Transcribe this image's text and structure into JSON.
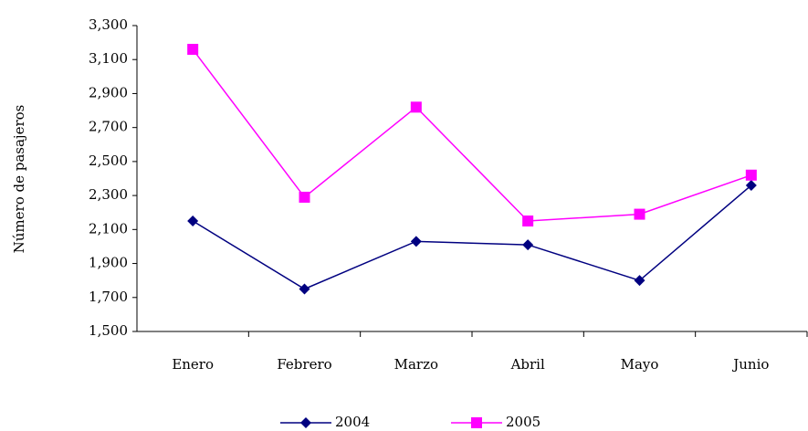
{
  "chart_data": {
    "type": "line",
    "ylabel": "Número de pasajeros",
    "categories": [
      "Enero",
      "Febrero",
      "Marzo",
      "Abril",
      "Mayo",
      "Junio"
    ],
    "series": [
      {
        "name": "2004",
        "color": "#000080",
        "marker": "diamond",
        "values": [
          2150,
          1750,
          2030,
          2010,
          1800,
          2360
        ]
      },
      {
        "name": "2005",
        "color": "#ff00ff",
        "marker": "square",
        "values": [
          3160,
          2290,
          2820,
          2150,
          2190,
          2420
        ]
      }
    ],
    "ylim": [
      1500,
      3300
    ],
    "yticks": [
      {
        "value": 1500,
        "label": "1,500"
      },
      {
        "value": 1700,
        "label": "1,700"
      },
      {
        "value": 1900,
        "label": "1,900"
      },
      {
        "value": 2100,
        "label": "2,100"
      },
      {
        "value": 2300,
        "label": "2,300"
      },
      {
        "value": 2500,
        "label": "2,500"
      },
      {
        "value": 2700,
        "label": "2,700"
      },
      {
        "value": 2900,
        "label": "2,900"
      },
      {
        "value": 3100,
        "label": "3,100"
      },
      {
        "value": 3300,
        "label": "3,300"
      }
    ],
    "grid": false,
    "legend": "bottom"
  }
}
